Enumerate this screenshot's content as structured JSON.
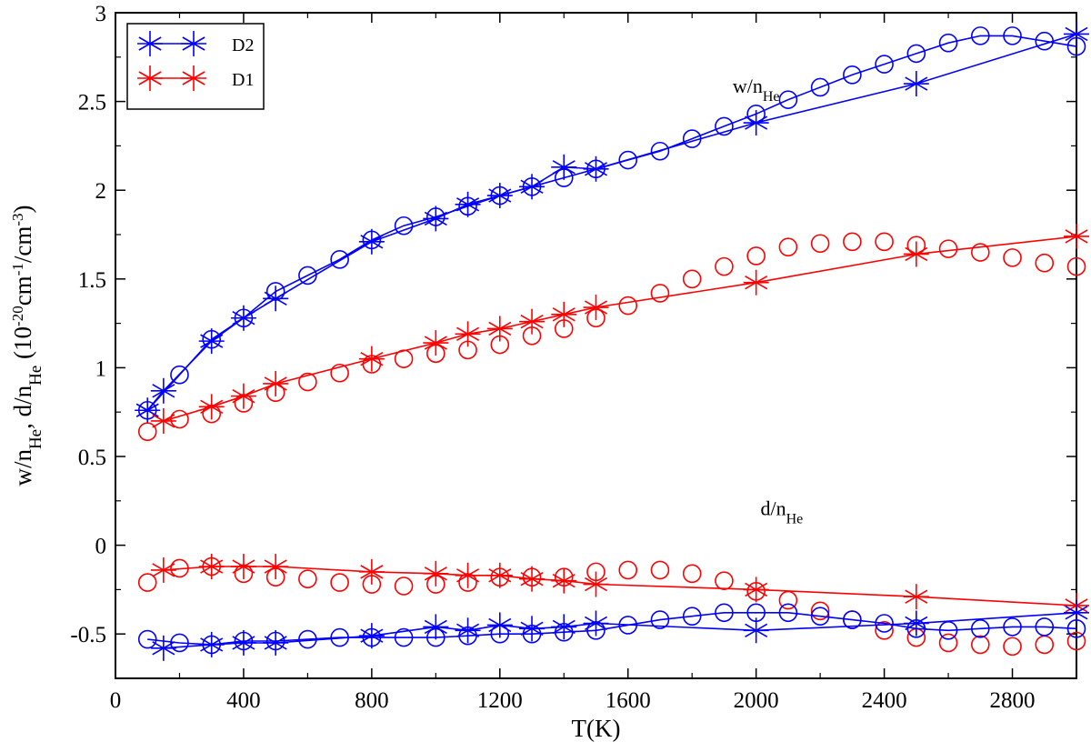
{
  "chart_data": {
    "type": "line",
    "xlabel": "T(K)",
    "ylabel": {
      "w": "w/n",
      "sub1": "He",
      "mid": ", d/n",
      "sub2": "He",
      "unit_open": " (10",
      "exp1": "-20",
      "unit_mid": "cm",
      "exp2": "-1",
      "unit_mid2": "/cm",
      "exp3": "-3",
      "unit_close": ")"
    },
    "xlim": [
      0,
      3000
    ],
    "ylim": [
      -0.75,
      3.0
    ],
    "xticks": [
      0,
      400,
      800,
      1200,
      1600,
      2000,
      2400,
      2800
    ],
    "xtick_labels": [
      "0",
      "400",
      "800",
      "1200",
      "1600",
      "2000",
      "2400",
      "2800"
    ],
    "yticks": [
      -0.5,
      0,
      0.5,
      1,
      1.5,
      2,
      2.5,
      3
    ],
    "ytick_labels": [
      "-0.5",
      "0",
      "0.5",
      "1",
      "1.5",
      "2",
      "2.5",
      "3"
    ],
    "legend": {
      "position": "top-left",
      "entries": [
        {
          "name": "D2",
          "color": "#0000ff"
        },
        {
          "name": "D1",
          "color": "#ff0000"
        }
      ]
    },
    "annotations": [
      {
        "id": "w",
        "text": "w/n",
        "sub": "He",
        "x": 2000,
        "y": 2.55
      },
      {
        "id": "d",
        "text": "d/n",
        "sub": "He",
        "x": 2080,
        "y": 0.17
      }
    ],
    "series": [
      {
        "name": "D2 width (line with star markers)",
        "color": "#0000ff",
        "marker": "star",
        "line": true,
        "x": [
          100,
          150,
          300,
          400,
          500,
          800,
          1000,
          1100,
          1200,
          1300,
          1400,
          1500,
          2000,
          2500,
          3000
        ],
        "y": [
          0.76,
          0.87,
          1.15,
          1.28,
          1.39,
          1.71,
          1.84,
          1.92,
          1.97,
          2.02,
          2.13,
          2.12,
          2.38,
          2.6,
          2.88
        ]
      },
      {
        "name": "D2 width (circles)",
        "color": "#0000ff",
        "marker": "circle",
        "line": true,
        "x": [
          100,
          200,
          300,
          400,
          500,
          600,
          700,
          800,
          900,
          1000,
          1100,
          1200,
          1300,
          1400,
          1500,
          1600,
          1700,
          1800,
          1900,
          2000,
          2100,
          2200,
          2300,
          2400,
          2500,
          2600,
          2700,
          2800,
          2900,
          3000
        ],
        "y": [
          0.76,
          0.96,
          1.16,
          1.28,
          1.43,
          1.52,
          1.61,
          1.72,
          1.8,
          1.85,
          1.91,
          1.97,
          2.02,
          2.07,
          2.12,
          2.17,
          2.22,
          2.29,
          2.36,
          2.43,
          2.51,
          2.58,
          2.65,
          2.71,
          2.77,
          2.83,
          2.87,
          2.87,
          2.84,
          2.81
        ]
      },
      {
        "name": "D1 width (line with star markers)",
        "color": "#ff0000",
        "marker": "star",
        "line": true,
        "x": [
          150,
          300,
          400,
          500,
          800,
          1000,
          1100,
          1200,
          1300,
          1400,
          1500,
          2000,
          2500,
          3000
        ],
        "y": [
          0.7,
          0.78,
          0.84,
          0.91,
          1.05,
          1.14,
          1.19,
          1.22,
          1.26,
          1.3,
          1.34,
          1.48,
          1.64,
          1.74
        ]
      },
      {
        "name": "D1 width (circles)",
        "color": "#ff0000",
        "marker": "circle",
        "line": false,
        "x": [
          100,
          200,
          300,
          400,
          500,
          600,
          700,
          800,
          900,
          1000,
          1100,
          1200,
          1300,
          1400,
          1500,
          1600,
          1700,
          1800,
          1900,
          2000,
          2100,
          2200,
          2300,
          2400,
          2500,
          2600,
          2700,
          2800,
          2900,
          3000
        ],
        "y": [
          0.64,
          0.71,
          0.74,
          0.8,
          0.86,
          0.92,
          0.97,
          1.02,
          1.05,
          1.08,
          1.1,
          1.13,
          1.18,
          1.22,
          1.28,
          1.35,
          1.42,
          1.5,
          1.57,
          1.63,
          1.68,
          1.7,
          1.71,
          1.71,
          1.69,
          1.67,
          1.65,
          1.62,
          1.59,
          1.57
        ]
      },
      {
        "name": "D1 shift (line with star markers)",
        "color": "#ff0000",
        "marker": "star",
        "line": true,
        "x": [
          150,
          300,
          400,
          500,
          800,
          1000,
          1100,
          1200,
          1300,
          1400,
          1500,
          2000,
          2500,
          3000
        ],
        "y": [
          -0.14,
          -0.12,
          -0.12,
          -0.12,
          -0.15,
          -0.16,
          -0.17,
          -0.17,
          -0.19,
          -0.2,
          -0.22,
          -0.25,
          -0.29,
          -0.34
        ]
      },
      {
        "name": "D1 shift (circles)",
        "color": "#ff0000",
        "marker": "circle",
        "line": false,
        "x": [
          100,
          200,
          300,
          400,
          500,
          600,
          700,
          800,
          900,
          1000,
          1100,
          1200,
          1300,
          1400,
          1500,
          1600,
          1700,
          1800,
          1900,
          2000,
          2100,
          2200,
          2300,
          2400,
          2500,
          2600,
          2700,
          2800,
          2900,
          3000
        ],
        "y": [
          -0.21,
          -0.13,
          -0.12,
          -0.16,
          -0.18,
          -0.19,
          -0.21,
          -0.22,
          -0.23,
          -0.22,
          -0.21,
          -0.18,
          -0.18,
          -0.18,
          -0.15,
          -0.14,
          -0.14,
          -0.16,
          -0.2,
          -0.26,
          -0.31,
          -0.37,
          -0.42,
          -0.48,
          -0.52,
          -0.55,
          -0.56,
          -0.57,
          -0.56,
          -0.54
        ]
      },
      {
        "name": "D2 shift (line with star markers)",
        "color": "#0000ff",
        "marker": "star",
        "line": true,
        "x": [
          150,
          300,
          400,
          500,
          800,
          1000,
          1100,
          1200,
          1300,
          1400,
          1500,
          2000,
          2500,
          3000
        ],
        "y": [
          -0.58,
          -0.56,
          -0.55,
          -0.55,
          -0.51,
          -0.46,
          -0.48,
          -0.45,
          -0.47,
          -0.46,
          -0.44,
          -0.48,
          -0.44,
          -0.38
        ]
      },
      {
        "name": "D2 shift (circles)",
        "color": "#0000ff",
        "marker": "circle",
        "line": true,
        "x": [
          100,
          200,
          300,
          400,
          500,
          600,
          700,
          800,
          900,
          1000,
          1100,
          1200,
          1300,
          1400,
          1500,
          1600,
          1700,
          1800,
          1900,
          2000,
          2100,
          2200,
          2300,
          2400,
          2500,
          2600,
          2700,
          2800,
          2900,
          3000
        ],
        "y": [
          -0.53,
          -0.55,
          -0.56,
          -0.54,
          -0.54,
          -0.53,
          -0.52,
          -0.52,
          -0.52,
          -0.52,
          -0.51,
          -0.5,
          -0.5,
          -0.49,
          -0.48,
          -0.45,
          -0.42,
          -0.4,
          -0.38,
          -0.38,
          -0.38,
          -0.4,
          -0.42,
          -0.44,
          -0.47,
          -0.48,
          -0.47,
          -0.46,
          -0.46,
          -0.47
        ]
      }
    ]
  }
}
